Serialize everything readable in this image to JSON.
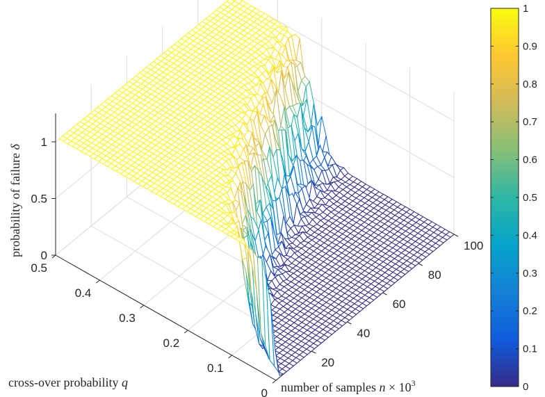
{
  "chart_data": {
    "type": "surface-mesh",
    "xlabel": "cross-over probability q",
    "ylabel": "number of samples n × 10³",
    "zlabel": "probability of failure δ",
    "xlabel_parts": {
      "text": "cross-over probability ",
      "var": "q"
    },
    "ylabel_parts": {
      "text": "number of samples ",
      "var": "n",
      "times": " × 10",
      "exp": "3"
    },
    "zlabel_parts": {
      "text": "probability of failure ",
      "var": "δ"
    },
    "xlim": [
      0,
      0.5
    ],
    "ylim": [
      0,
      100
    ],
    "zlim": [
      0,
      1
    ],
    "x_ticks": [
      "0",
      "0.1",
      "0.2",
      "0.3",
      "0.4",
      "0.5"
    ],
    "y_ticks": [
      "20",
      "40",
      "60",
      "80",
      "100"
    ],
    "z_ticks": [
      "0",
      "0.5",
      "1"
    ],
    "colorbar_ticks": [
      "0",
      "0.1",
      "0.2",
      "0.3",
      "0.4",
      "0.5",
      "0.6",
      "0.7",
      "0.8",
      "0.9",
      "1"
    ],
    "colormap": "parula",
    "colormap_stops": [
      "#352a87",
      "#0f5cdd",
      "#1481d6",
      "#06a4ca",
      "#2eb7a4",
      "#87bf77",
      "#d1bb59",
      "#fec832",
      "#f9fb0e"
    ],
    "grid": true,
    "surface": {
      "q_min": 0.0,
      "q_max": 0.5,
      "q_steps": 50,
      "n_min": 2,
      "n_max": 100,
      "n_steps": 50,
      "description_values": {
        "transition_q_at_n_max": 0.32,
        "transition_q_at_n_min": 0.02,
        "failure_low": 0.0,
        "failure_high": 1.0
      }
    }
  }
}
